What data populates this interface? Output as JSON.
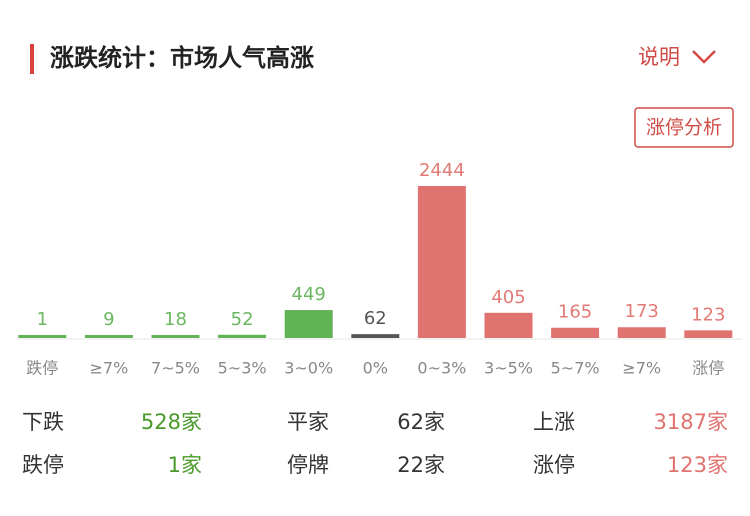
{
  "header": {
    "title": "涨跌统计：市场人气高涨",
    "link": "说明",
    "button": "涨停分析"
  },
  "chart_data": {
    "type": "bar",
    "categories": [
      "跌停",
      "≥7%",
      "7~5%",
      "5~3%",
      "3~0%",
      "0%",
      "0~3%",
      "3~5%",
      "5~7%",
      "≥7%",
      "涨停"
    ],
    "values": [
      1,
      9,
      18,
      52,
      449,
      62,
      2444,
      405,
      165,
      173,
      123
    ],
    "colors": [
      "#62b356",
      "#62b356",
      "#62b356",
      "#62b356",
      "#62b356",
      "#555555",
      "#e0736f",
      "#e0736f",
      "#e0736f",
      "#e0736f",
      "#e0736f"
    ]
  },
  "summary": {
    "rows": [
      [
        {
          "label": "下跌",
          "value": "528家"
        },
        {
          "label": "平家",
          "value": "62家"
        },
        {
          "label": "上涨",
          "value": "3187家"
        }
      ],
      [
        {
          "label": "跌停",
          "value": "1家"
        },
        {
          "label": "停牌",
          "value": "22家"
        },
        {
          "label": "涨停",
          "value": "123家"
        }
      ]
    ]
  }
}
